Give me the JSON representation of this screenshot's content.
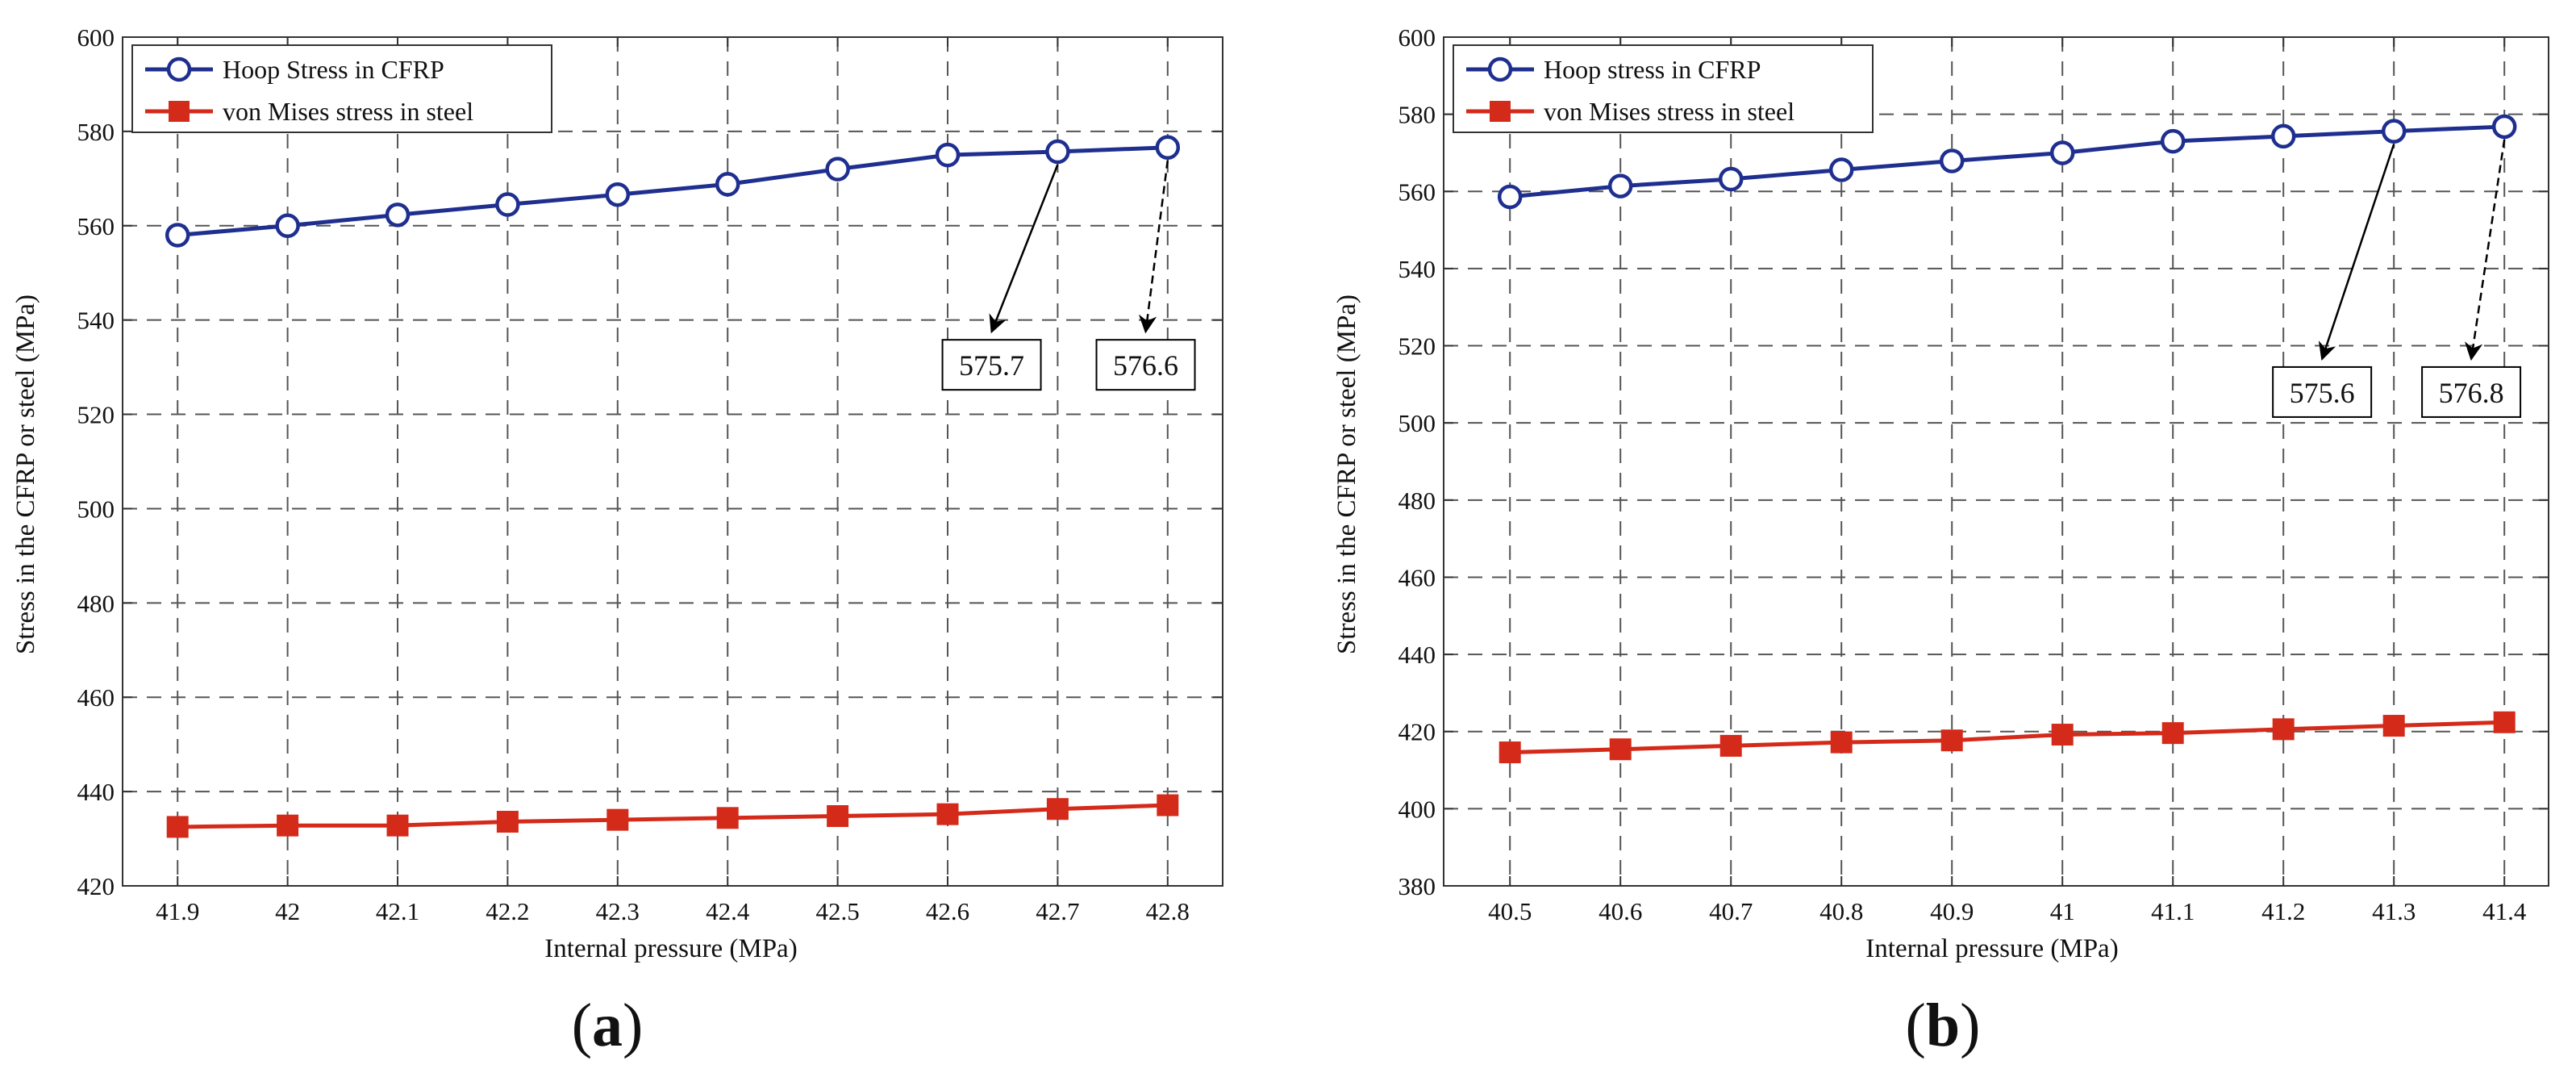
{
  "figure": {
    "colors": {
      "hoop": "#1f2f8f",
      "steel": "#d42a1a",
      "grid": "#555555",
      "axis": "#333333"
    }
  },
  "chart_data": [
    {
      "type": "line",
      "panel_label": "a",
      "xlabel": "Internal pressure (MPa)",
      "ylabel": "Stress in the CFRP or steel (MPa)",
      "x": [
        41.9,
        42.0,
        42.1,
        42.2,
        42.3,
        42.4,
        42.5,
        42.6,
        42.7,
        42.8
      ],
      "xlim": [
        41.85,
        42.85
      ],
      "xticks": [
        "41.9",
        "42",
        "42.1",
        "42.2",
        "42.3",
        "42.4",
        "42.5",
        "42.6",
        "42.7",
        "42.8"
      ],
      "ylim": [
        420,
        600
      ],
      "yticks": [
        "420",
        "440",
        "460",
        "480",
        "500",
        "520",
        "540",
        "560",
        "580",
        "600"
      ],
      "grid": true,
      "legend_position": "top-left",
      "series": [
        {
          "name": "Hoop Stress in CFRP",
          "marker": "circle",
          "color": "#1f2f8f",
          "values": [
            558.0,
            560.0,
            562.3,
            564.5,
            566.6,
            568.8,
            572.0,
            575.0,
            575.7,
            576.6
          ]
        },
        {
          "name": "von Mises stress in steel",
          "marker": "square",
          "color": "#d42a1a",
          "values": [
            432.5,
            432.8,
            432.8,
            433.6,
            434.0,
            434.4,
            434.8,
            435.2,
            436.3,
            437.1
          ]
        }
      ],
      "annotations": [
        {
          "text": "575.7",
          "point_x": 42.7,
          "point_y": 575.7,
          "box_x": 42.64,
          "box_y": 530.5,
          "arrow": "solid"
        },
        {
          "text": "576.6",
          "point_x": 42.8,
          "point_y": 576.6,
          "box_x": 42.78,
          "box_y": 530.5,
          "arrow": "dashed"
        }
      ]
    },
    {
      "type": "line",
      "panel_label": "b",
      "xlabel": "Internal pressure (MPa)",
      "ylabel": "Stress in the CFRP or steel (MPa)",
      "x": [
        40.5,
        40.6,
        40.7,
        40.8,
        40.9,
        41.0,
        41.1,
        41.2,
        41.3,
        41.4
      ],
      "xlim": [
        40.44,
        41.44
      ],
      "xticks": [
        "40.5",
        "40.6",
        "40.7",
        "40.8",
        "40.9",
        "41",
        "41.1",
        "41.2",
        "41.3",
        "41.4"
      ],
      "ylim": [
        380,
        600
      ],
      "yticks": [
        "380",
        "400",
        "420",
        "440",
        "460",
        "480",
        "500",
        "520",
        "540",
        "560",
        "580",
        "600"
      ],
      "grid": true,
      "legend_position": "top-left",
      "series": [
        {
          "name": "Hoop stress in CFRP",
          "marker": "circle",
          "color": "#1f2f8f",
          "values": [
            558.6,
            561.4,
            563.2,
            565.6,
            567.9,
            570.0,
            573.0,
            574.3,
            575.6,
            576.8
          ]
        },
        {
          "name": "von Mises stress in steel",
          "marker": "square",
          "color": "#d42a1a",
          "values": [
            414.6,
            415.4,
            416.3,
            417.2,
            417.7,
            419.2,
            419.6,
            420.6,
            421.5,
            422.4
          ]
        }
      ],
      "annotations": [
        {
          "text": "575.6",
          "point_x": 41.3,
          "point_y": 575.6,
          "box_x": 41.235,
          "box_y": 508,
          "arrow": "solid"
        },
        {
          "text": "576.8",
          "point_x": 41.4,
          "point_y": 576.8,
          "box_x": 41.37,
          "box_y": 508,
          "arrow": "dashed"
        }
      ]
    }
  ]
}
